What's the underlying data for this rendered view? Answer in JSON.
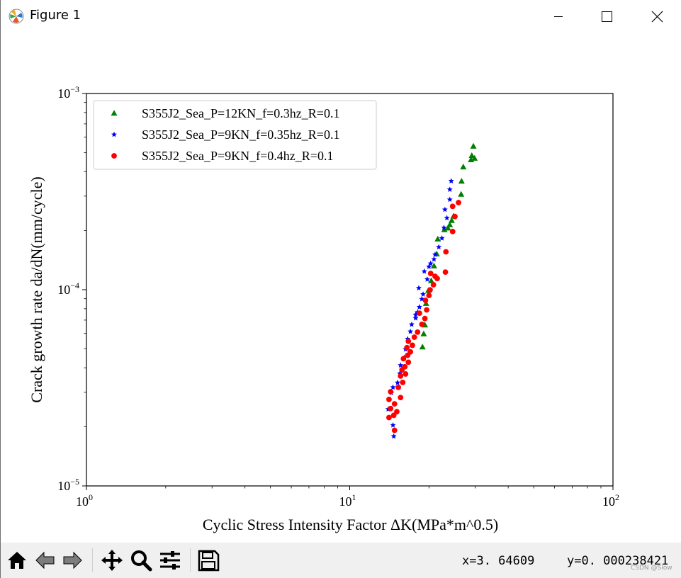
{
  "window": {
    "title": "Figure 1"
  },
  "toolbar": {
    "coord_x": "x=3. 64609",
    "coord_y": "y=0. 000238421",
    "watermark": "CSDN @Slow"
  },
  "chart_data": {
    "type": "scatter",
    "title": "",
    "xlabel": "Cyclic Stress Intensity Factor ΔK(MPa*m^0.5)",
    "ylabel": "Crack growth rate da/dN(mm/cycle)",
    "xscale": "log",
    "yscale": "log",
    "xlim": [
      1,
      100
    ],
    "ylim": [
      1e-05,
      0.001
    ],
    "x_ticks": [
      {
        "value": 1,
        "base": "10",
        "exp": "0"
      },
      {
        "value": 10,
        "base": "10",
        "exp": "1"
      },
      {
        "value": 100,
        "base": "10",
        "exp": "2"
      }
    ],
    "y_ticks": [
      {
        "value": 1e-05,
        "base": "10",
        "exp": "−5"
      },
      {
        "value": 0.0001,
        "base": "10",
        "exp": "−4"
      },
      {
        "value": 0.001,
        "base": "10",
        "exp": "−3"
      }
    ],
    "grid": false,
    "legend_position": "top-left",
    "series": [
      {
        "name": "S355J2_Sea_P=12KN_f=0.3hz_R=0.1",
        "color": "#008000",
        "marker": "triangle",
        "points": [
          [
            18.9,
            5.1e-05
          ],
          [
            19.1,
            5.95e-05
          ],
          [
            19.3,
            6.6e-05
          ],
          [
            19.5,
            8.5e-05
          ],
          [
            19.9,
            9.9e-05
          ],
          [
            20.4,
            0.000111
          ],
          [
            20.9,
            0.000132
          ],
          [
            21.4,
            0.000152
          ],
          [
            21.6,
            0.000181
          ],
          [
            22.9,
            0.000202
          ],
          [
            23.6,
            0.000206
          ],
          [
            24.0,
            0.000214
          ],
          [
            24.4,
            0.000225
          ],
          [
            24.8,
            0.000237
          ],
          [
            26.5,
            0.000306
          ],
          [
            26.6,
            0.000357
          ],
          [
            27.0,
            0.000422
          ],
          [
            28.9,
            0.000459
          ],
          [
            29.1,
            0.000482
          ],
          [
            29.8,
            0.000467
          ],
          [
            29.5,
            0.000538
          ]
        ]
      },
      {
        "name": "S355J2_Sea_P=9KN_f=0.35hz_R=0.1",
        "color": "#0000ff",
        "marker": "star",
        "points": [
          [
            14.7,
            1.79e-05
          ],
          [
            14.6,
            2.04e-05
          ],
          [
            14.0,
            2.46e-05
          ],
          [
            14.4,
            2.98e-05
          ],
          [
            14.6,
            3.18e-05
          ],
          [
            15.2,
            3.36e-05
          ],
          [
            15.5,
            3.74e-05
          ],
          [
            15.6,
            4.12e-05
          ],
          [
            16.1,
            4.51e-05
          ],
          [
            16.3,
            4.97e-05
          ],
          [
            16.6,
            5.61e-05
          ],
          [
            17.0,
            6.12e-05
          ],
          [
            17.2,
            6.65e-05
          ],
          [
            17.8,
            7.16e-05
          ],
          [
            17.8,
            7.46e-05
          ],
          [
            18.1,
            7.68e-05
          ],
          [
            18.4,
            8.16e-05
          ],
          [
            18.8,
            8.96e-05
          ],
          [
            19.0,
            9.48e-05
          ],
          [
            18.3,
            0.000102
          ],
          [
            19.7,
            0.000113
          ],
          [
            19.2,
            0.000124
          ],
          [
            20.0,
            0.000131
          ],
          [
            20.3,
            0.000136
          ],
          [
            20.9,
            0.000143
          ],
          [
            21.1,
            0.000151
          ],
          [
            21.8,
            0.000165
          ],
          [
            22.4,
            0.000183
          ],
          [
            22.8,
            0.000207
          ],
          [
            23.4,
            0.000232
          ],
          [
            23.0,
            0.000256
          ],
          [
            24.0,
            0.000288
          ],
          [
            24.0,
            0.000324
          ],
          [
            24.3,
            0.000358
          ]
        ]
      },
      {
        "name": "S355J2_Sea_P=9KN_f=0.4hz_R=0.1",
        "color": "#ff0000",
        "marker": "circle",
        "points": [
          [
            14.8,
            1.92e-05
          ],
          [
            14.1,
            2.23e-05
          ],
          [
            14.7,
            2.29e-05
          ],
          [
            14.3,
            2.48e-05
          ],
          [
            15.1,
            2.39e-05
          ],
          [
            14.1,
            2.76e-05
          ],
          [
            14.8,
            2.62e-05
          ],
          [
            14.3,
            3.02e-05
          ],
          [
            15.6,
            2.82e-05
          ],
          [
            15.3,
            3.18e-05
          ],
          [
            15.9,
            3.37e-05
          ],
          [
            15.6,
            3.63e-05
          ],
          [
            16.3,
            3.72e-05
          ],
          [
            15.8,
            3.91e-05
          ],
          [
            16.2,
            4.05e-05
          ],
          [
            16.7,
            4.27e-05
          ],
          [
            16.0,
            4.45e-05
          ],
          [
            16.6,
            4.63e-05
          ],
          [
            17.0,
            4.82e-05
          ],
          [
            16.5,
            5.07e-05
          ],
          [
            17.3,
            5.21e-05
          ],
          [
            16.7,
            5.46e-05
          ],
          [
            17.6,
            5.73e-05
          ],
          [
            18.1,
            6.08e-05
          ],
          [
            18.8,
            6.66e-05
          ],
          [
            19.3,
            7.13e-05
          ],
          [
            18.4,
            7.59e-05
          ],
          [
            19.6,
            7.89e-05
          ],
          [
            19.4,
            8.83e-05
          ],
          [
            20.0,
            9.35e-05
          ],
          [
            20.2,
            9.98e-05
          ],
          [
            20.8,
            0.000106
          ],
          [
            21.5,
            0.000114
          ],
          [
            20.3,
            0.000121
          ],
          [
            21.1,
            0.000117
          ],
          [
            23.1,
            0.000123
          ],
          [
            23.2,
            0.000156
          ],
          [
            24.6,
            0.000198
          ],
          [
            25.1,
            0.000236
          ],
          [
            24.6,
            0.000266
          ],
          [
            25.9,
            0.000278
          ]
        ]
      }
    ]
  }
}
